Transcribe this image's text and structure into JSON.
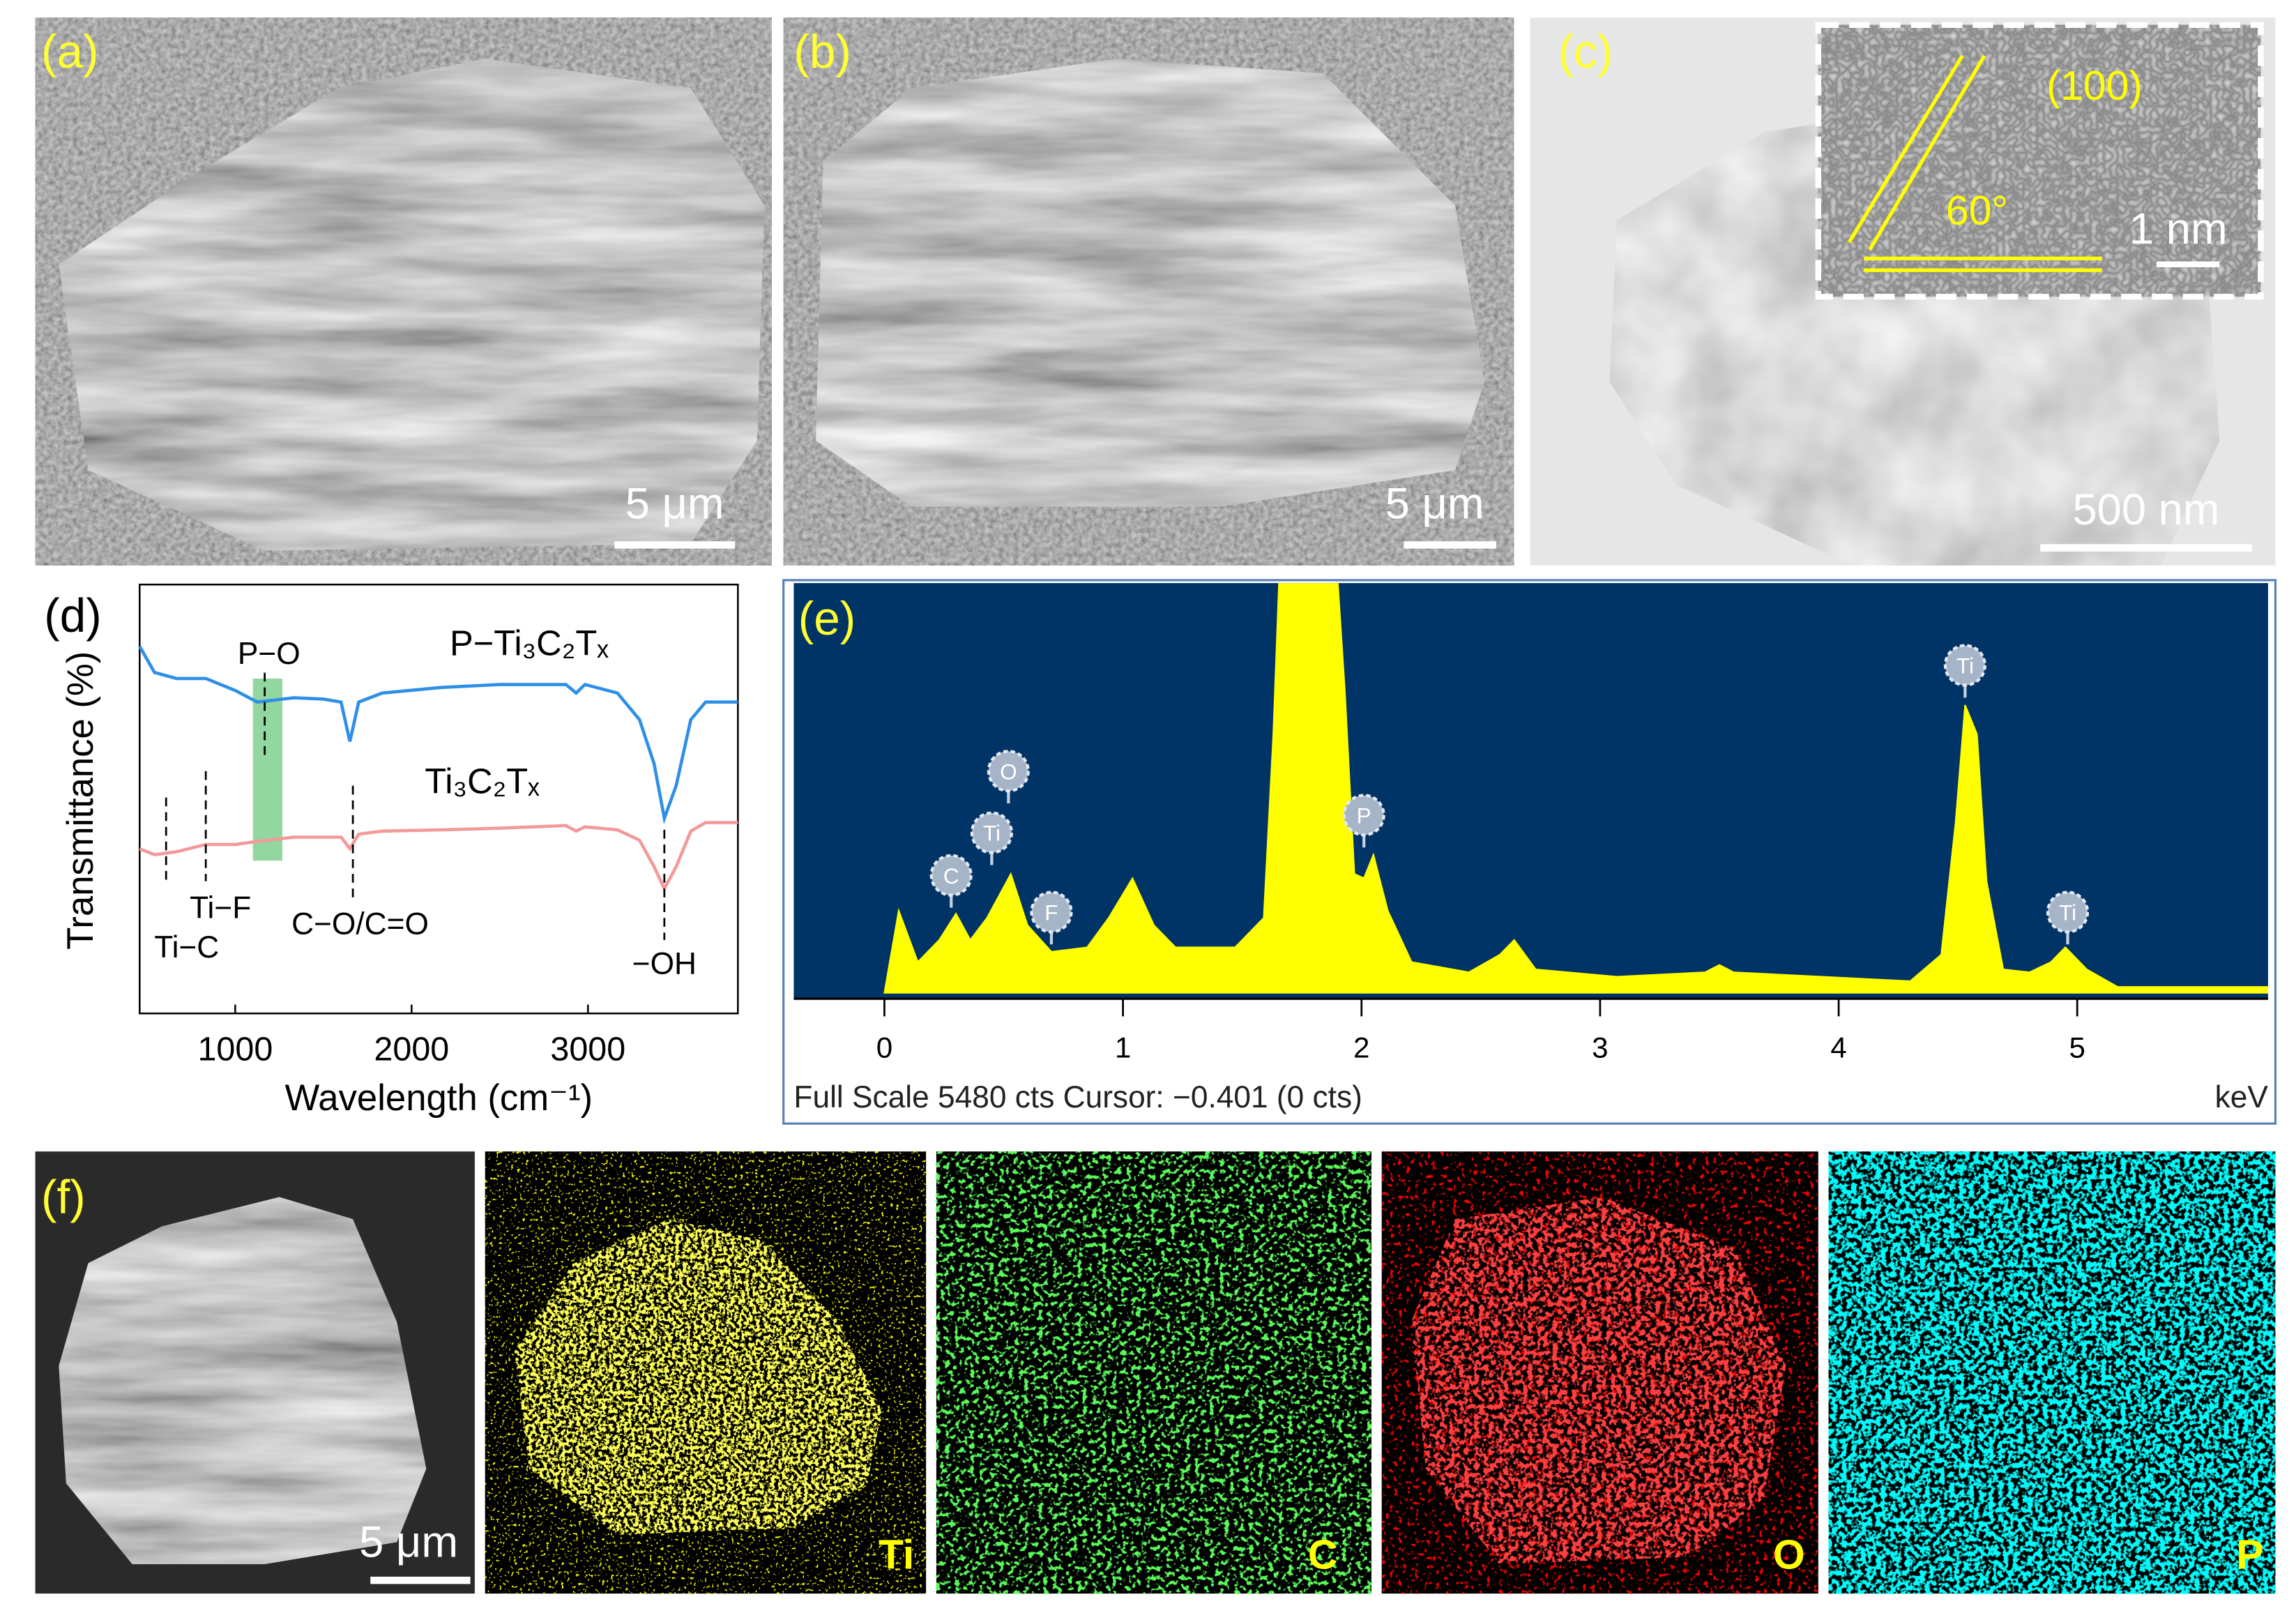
{
  "panels": [
    {
      "label": "(a)",
      "scale_bar": "5 μm"
    },
    {
      "label": "(b)",
      "scale_bar": "5 μm"
    },
    {
      "label": "(c)",
      "scale_bar": "500 nm",
      "inset": {
        "plane": "(100)",
        "angle": "60°",
        "scale_bar": "1 nm"
      }
    },
    {
      "label": "(f)",
      "scale_bar": "5 μm"
    }
  ],
  "maps": [
    {
      "element": "Ti"
    },
    {
      "element": "C"
    },
    {
      "element": "O"
    },
    {
      "element": "P"
    }
  ],
  "chart_data": [
    {
      "type": "line",
      "label": "(d)",
      "xlabel": "Wavelength (cm⁻¹)",
      "ylabel": "Transmittance (%)",
      "xlim": [
        458,
        3850
      ],
      "ylim": [
        0,
        100
      ],
      "xticks": [
        1000,
        2000,
        3000
      ],
      "x": [
        458,
        542,
        667,
        833,
        1000,
        1125,
        1333,
        1500,
        1600,
        1650,
        1700,
        1833,
        2167,
        2500,
        2875,
        2933,
        2983,
        3167,
        3292,
        3375,
        3433,
        3500,
        3583,
        3667,
        3850
      ],
      "series": [
        {
          "name": "P−Ti₃C₂Tₓ",
          "color": "#2e8fe6",
          "values": [
            85.6,
            79.5,
            78.1,
            78.1,
            75.3,
            72.6,
            73.6,
            73.3,
            72.6,
            63.4,
            72.6,
            74.7,
            76.0,
            76.7,
            76.7,
            74.7,
            76.7,
            74.7,
            68.5,
            58.2,
            45.5,
            53.1,
            68.5,
            72.6,
            72.6
          ]
        },
        {
          "name": "Ti₃C₂Tₓ",
          "color": "#f29a9a",
          "values": [
            38.4,
            37.0,
            37.7,
            39.4,
            39.4,
            40.1,
            41.1,
            41.1,
            41.1,
            38.4,
            41.8,
            42.5,
            42.8,
            43.2,
            43.8,
            42.5,
            43.5,
            42.8,
            40.4,
            34.2,
            29.1,
            34.2,
            42.5,
            44.5,
            44.5
          ]
        }
      ],
      "annotations": [
        {
          "text": "Ti−C",
          "x": 608
        },
        {
          "text": "Ti−F",
          "x": 833
        },
        {
          "text": "P−O",
          "x": 1167,
          "band": [
            1100,
            1267
          ]
        },
        {
          "text": "C−O/C=O",
          "x": 1667
        },
        {
          "text": "−OH",
          "x": 3433
        }
      ]
    },
    {
      "type": "area",
      "label": "(e)",
      "xlabel": "keV",
      "footer": "Full Scale 5480 cts Cursor: −0.401 (0 cts)",
      "color": "#ffff00",
      "background": "#003366",
      "xlim": [
        -0.38,
        5.8
      ],
      "ylim": [
        0,
        5480
      ],
      "xticks": [
        0,
        1,
        2,
        3,
        4,
        5
      ],
      "x": [
        0,
        0.06,
        0.14,
        0.23,
        0.3,
        0.36,
        0.43,
        0.53,
        0.6,
        0.7,
        0.85,
        0.94,
        1.04,
        1.13,
        1.22,
        1.47,
        1.59,
        1.63,
        1.66,
        1.89,
        1.93,
        1.97,
        2.01,
        2.05,
        2.11,
        2.21,
        2.45,
        2.58,
        2.64,
        2.73,
        3.07,
        3.44,
        3.5,
        3.56,
        4.3,
        4.43,
        4.49,
        4.53,
        4.58,
        4.62,
        4.69,
        4.8,
        4.89,
        4.95,
        5.04,
        5.17,
        5.8
      ],
      "values": [
        0,
        1100,
        412,
        707,
        1060,
        707,
        1002,
        1591,
        903,
        550,
        609,
        1002,
        1532,
        903,
        609,
        609,
        1002,
        3457,
        6000,
        6000,
        4046,
        1591,
        1532,
        1846,
        1100,
        412,
        275,
        511,
        707,
        314,
        216,
        275,
        373,
        275,
        157,
        511,
        2278,
        3849,
        3457,
        1493,
        314,
        275,
        412,
        609,
        314,
        79,
        79
      ],
      "annotations": [
        {
          "text": "C",
          "x": 0.28
        },
        {
          "text": "Ti",
          "x": 0.45
        },
        {
          "text": "O",
          "x": 0.52
        },
        {
          "text": "F",
          "x": 0.7
        },
        {
          "text": "P",
          "x": 2.01
        },
        {
          "text": "Ti",
          "x": 4.53
        },
        {
          "text": "Ti",
          "x": 4.96
        }
      ]
    }
  ]
}
